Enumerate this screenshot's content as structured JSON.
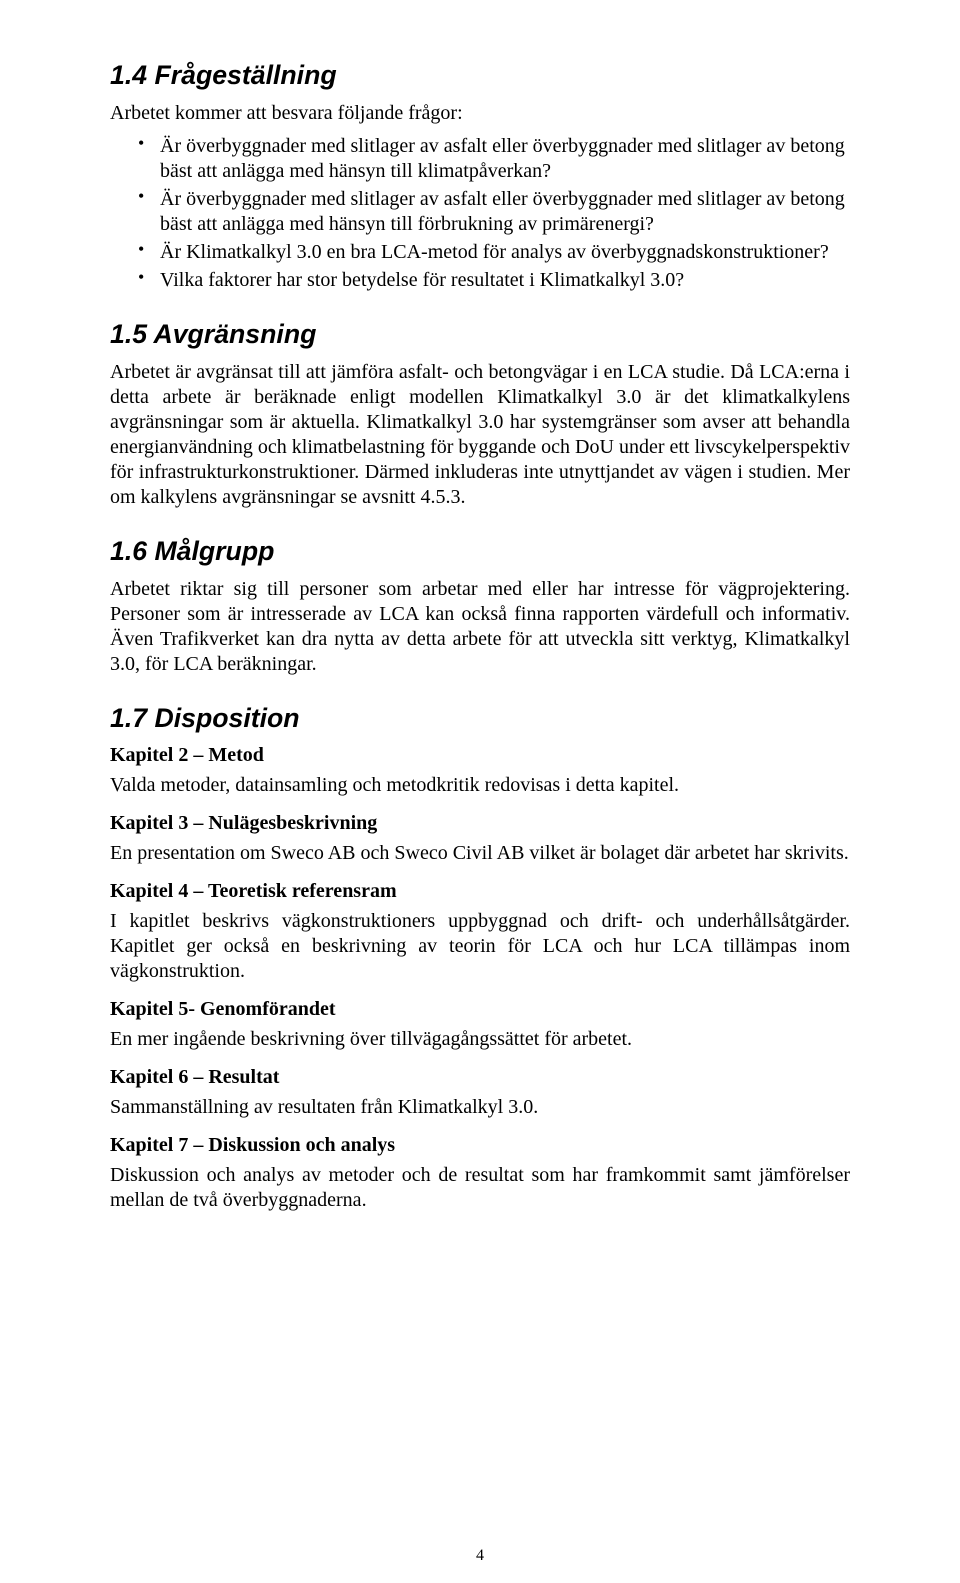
{
  "typography": {
    "heading_font": "Arial",
    "heading_fontsize_pt": 20,
    "heading_style": "italic bold",
    "body_font": "Times New Roman",
    "body_fontsize_pt": 15,
    "chapter_label_fontsize_pt": 15,
    "chapter_label_weight": "bold",
    "bullet_fontsize_pt": 15,
    "page_number_fontsize_pt": 12,
    "text_color": "#000000",
    "background_color": "#ffffff"
  },
  "sections": {
    "s1_4": {
      "title": "1.4 Frågeställning",
      "intro": "Arbetet kommer att besvara följande frågor:",
      "bullets": [
        "Är överbyggnader med slitlager av asfalt eller överbyggnader med slitlager av betong bäst att anlägga med hänsyn till klimatpåverkan?",
        "Är överbyggnader med slitlager av asfalt eller överbyggnader med slitlager av betong bäst att anlägga med hänsyn till förbrukning av primärenergi?",
        "Är Klimatkalkyl 3.0 en bra LCA-metod för analys av överbyggnadskonstruktioner?",
        "Vilka faktorer har stor betydelse för resultatet i Klimatkalkyl 3.0?"
      ]
    },
    "s1_5": {
      "title": "1.5 Avgränsning",
      "body": "Arbetet är avgränsat till att jämföra asfalt- och betongvägar i en LCA studie. Då LCA:erna i detta arbete är beräknade enligt modellen Klimatkalkyl 3.0 är det klimatkalkylens avgränsningar som är aktuella. Klimatkalkyl 3.0 har systemgränser som avser att behandla energianvändning och klimatbelastning för byggande och DoU under ett livscykelperspektiv för infrastrukturkonstruktioner. Därmed inkluderas inte utnyttjandet av vägen i studien. Mer om kalkylens avgränsningar se avsnitt 4.5.3."
    },
    "s1_6": {
      "title": "1.6 Målgrupp",
      "body": "Arbetet riktar sig till personer som arbetar med eller har intresse för vägprojektering. Personer som är intresserade av LCA kan också finna rapporten värdefull och informativ. Även Trafikverket kan dra nytta av detta arbete för att utveckla sitt verktyg, Klimatkalkyl 3.0, för LCA beräkningar."
    },
    "s1_7": {
      "title": "1.7 Disposition",
      "chapters": [
        {
          "label": "Kapitel 2 – Metod",
          "text": "Valda metoder, datainsamling och metodkritik redovisas i detta kapitel."
        },
        {
          "label": "Kapitel 3 – Nulägesbeskrivning",
          "text": "En presentation om Sweco AB och Sweco Civil AB vilket är bolaget där arbetet har skrivits."
        },
        {
          "label": "Kapitel 4 – Teoretisk referensram",
          "text": "I kapitlet beskrivs vägkonstruktioners uppbyggnad och drift- och underhållsåtgärder. Kapitlet ger också en beskrivning av teorin för LCA och hur LCA tillämpas inom vägkonstruktion."
        },
        {
          "label": "Kapitel 5- Genomförandet",
          "text": "En mer ingående beskrivning över tillvägagångssättet för arbetet."
        },
        {
          "label": "Kapitel 6 – Resultat",
          "text": "Sammanställning av resultaten från Klimatkalkyl 3.0."
        },
        {
          "label": "Kapitel 7 – Diskussion och analys",
          "text": "Diskussion och analys av metoder och de resultat som har framkommit samt jämförelser mellan de två överbyggnaderna."
        }
      ]
    }
  },
  "page_number": "4"
}
